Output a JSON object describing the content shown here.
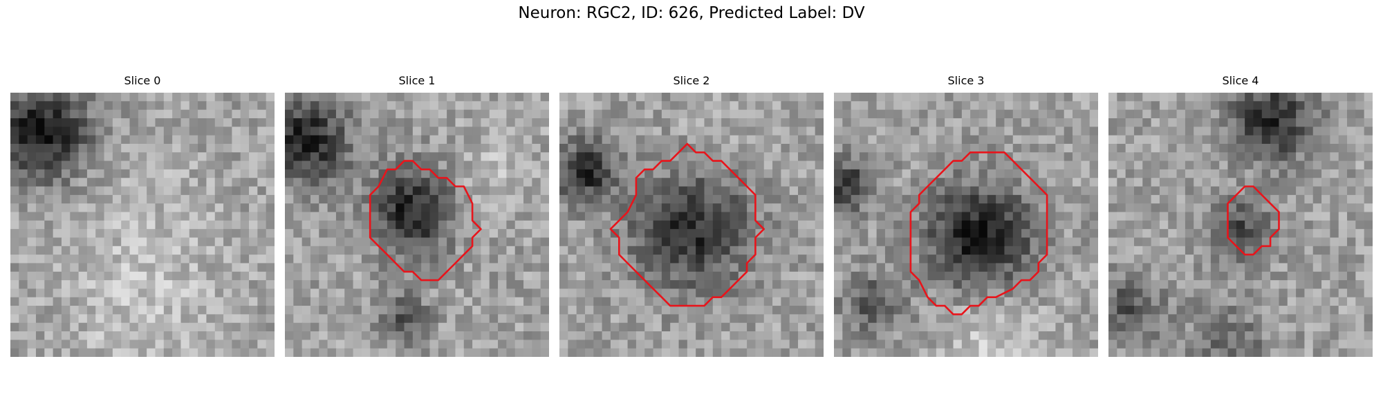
{
  "title": "Neuron: RGC2, ID: 626, Predicted Label: DV",
  "contour_color": "#e8141b",
  "panels": [
    {
      "label": "Slice 0",
      "has_contour": false
    },
    {
      "label": "Slice 1",
      "has_contour": true
    },
    {
      "label": "Slice 2",
      "has_contour": true
    },
    {
      "label": "Slice 3",
      "has_contour": true
    },
    {
      "label": "Slice 4",
      "has_contour": true
    }
  ]
}
